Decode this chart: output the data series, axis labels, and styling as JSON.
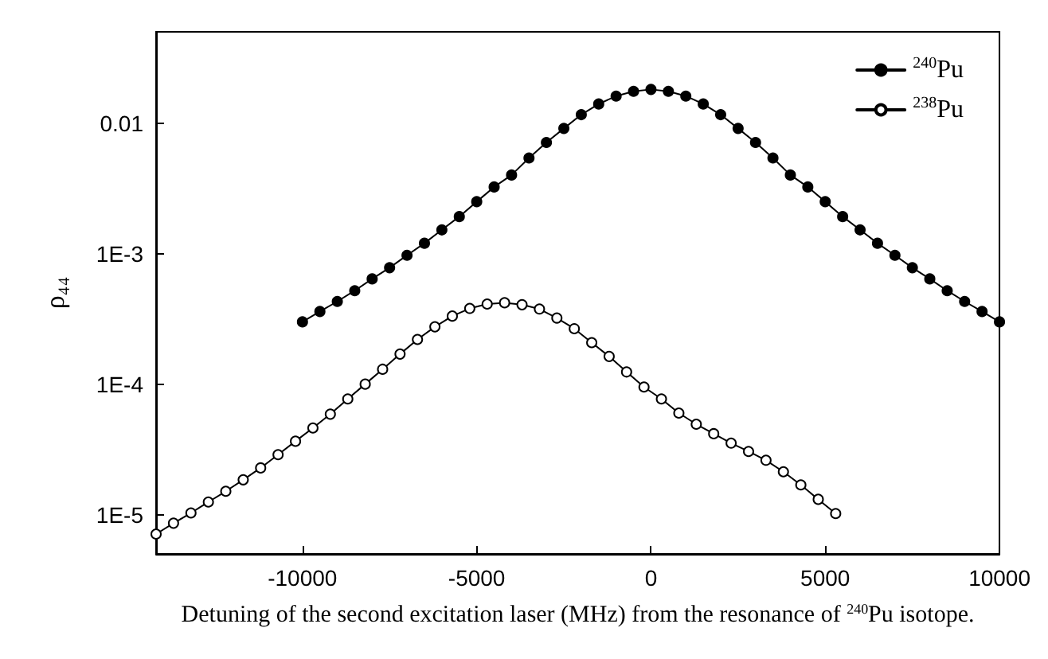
{
  "chart_data": {
    "type": "line",
    "xlabel": "Detuning of the second excitation laser (MHz) from the resonance of $^{240}$Pu isotope.",
    "ylabel": "ρ₄₄",
    "log": "y",
    "xlim": [
      -14200,
      10000
    ],
    "xticks": [
      -10000,
      -5000,
      0,
      5000,
      10000
    ],
    "ylim": [
      5e-06,
      0.05
    ],
    "yticks": [
      {
        "value": 0.01,
        "label": "0.01"
      },
      {
        "value": 0.001,
        "label": "1E-3"
      },
      {
        "value": 0.0001,
        "label": "1E-4"
      },
      {
        "value": 1e-05,
        "label": "1E-5"
      }
    ],
    "grid": false,
    "legend": "top right",
    "marker": "circle",
    "line_style": "solid",
    "series": [
      {
        "name": "$^{240}$Pu",
        "color": "#000000",
        "x": [
          -10000,
          -9500,
          -9000,
          -8500,
          -8000,
          -7500,
          -7000,
          -6500,
          -6000,
          -5500,
          -5000,
          -4500,
          -4000,
          -3500,
          -3000,
          -2500,
          -2000,
          -1500,
          -1000,
          -500,
          0,
          500,
          1000,
          1500,
          2000,
          2500,
          3000,
          3500,
          4000,
          4500,
          5000,
          5500,
          6000,
          6500,
          7000,
          7500,
          8000,
          8500,
          9000,
          9500,
          10000
        ],
        "values": [
          0.0003,
          0.00036,
          0.00043,
          0.00052,
          0.00064,
          0.00078,
          0.00097,
          0.0012,
          0.00152,
          0.00192,
          0.0025,
          0.00324,
          0.004,
          0.0054,
          0.0071,
          0.0091,
          0.0116,
          0.014,
          0.0161,
          0.0175,
          0.0181,
          0.0175,
          0.0161,
          0.014,
          0.0116,
          0.0091,
          0.0071,
          0.0054,
          0.004,
          0.00324,
          0.0025,
          0.00192,
          0.00152,
          0.0012,
          0.00097,
          0.00078,
          0.00064,
          0.00052,
          0.00043,
          0.00036,
          0.0003
        ]
      },
      {
        "name": "$^{238}$Pu",
        "color": "#000000",
        "x": [
          -14200,
          -13700,
          -13200,
          -12700,
          -12200,
          -11700,
          -11200,
          -10700,
          -10200,
          -9700,
          -9200,
          -8700,
          -8200,
          -7700,
          -7200,
          -6700,
          -6200,
          -5700,
          -5200,
          -4700,
          -4200,
          -3700,
          -3200,
          -2700,
          -2200,
          -1700,
          -1200,
          -700,
          -200,
          300,
          800,
          1300,
          1800,
          2300,
          2800,
          3300,
          3800,
          4300,
          4800,
          5300
        ],
        "values": [
          7.1e-06,
          8.6e-06,
          1.03e-05,
          1.25e-05,
          1.51e-05,
          1.85e-05,
          2.28e-05,
          2.88e-05,
          3.65e-05,
          4.61e-05,
          5.89e-05,
          7.7e-05,
          0.0001,
          0.00013,
          0.00017,
          0.00022,
          0.000275,
          0.000332,
          0.00038,
          0.000411,
          0.00042,
          0.000406,
          0.000376,
          0.000321,
          0.000266,
          0.000208,
          0.000163,
          0.000124,
          9.5e-05,
          7.7e-05,
          6e-05,
          4.93e-05,
          4.17e-05,
          3.53e-05,
          3.05e-05,
          2.61e-05,
          2.13e-05,
          1.69e-05,
          1.31e-05,
          1.02e-05
        ]
      }
    ]
  }
}
